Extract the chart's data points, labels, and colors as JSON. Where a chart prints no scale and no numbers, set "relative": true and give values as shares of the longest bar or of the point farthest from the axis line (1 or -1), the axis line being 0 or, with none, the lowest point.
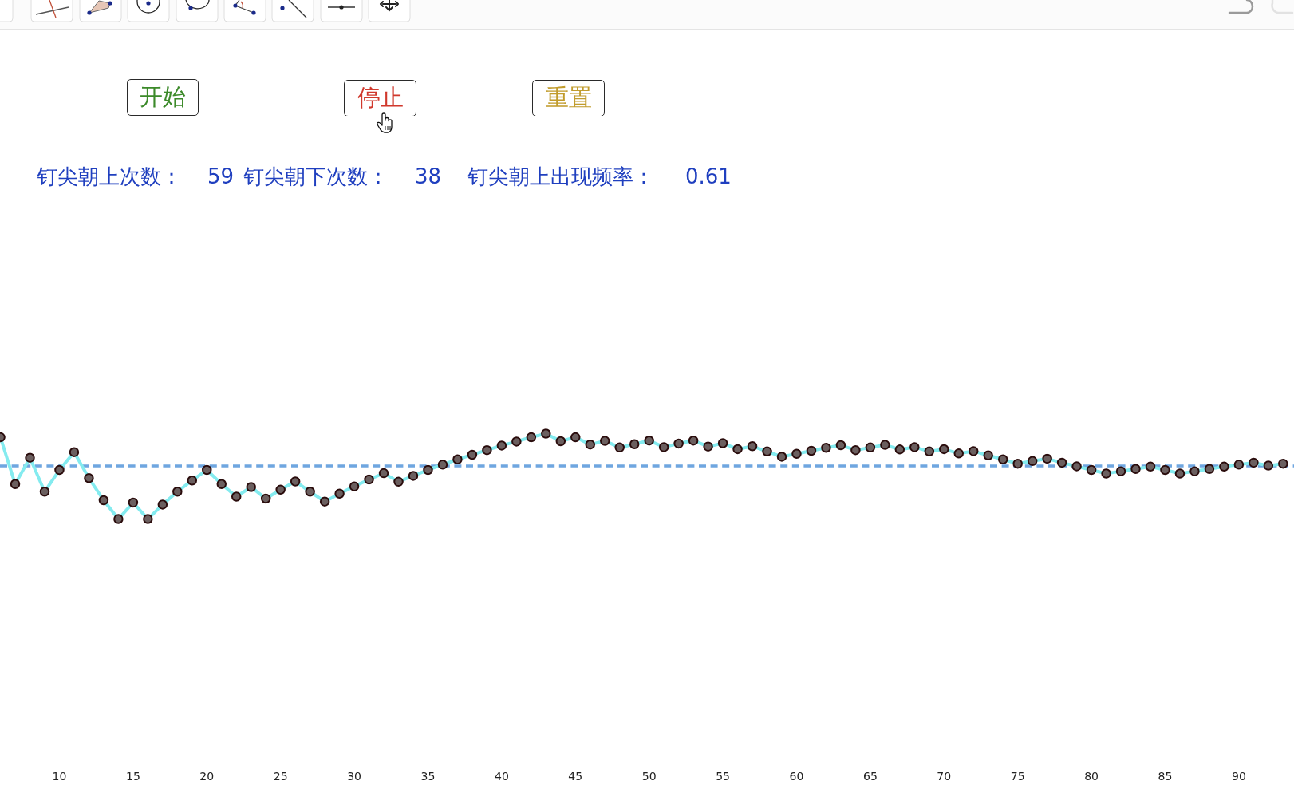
{
  "chart_data": {
    "type": "line",
    "relative": true,
    "annotations": [
      "开始",
      "停止",
      "重置",
      "钉尖朝上次数：",
      "59",
      "钉尖朝下次数：",
      "38",
      "钉尖朝上出现频率：",
      "0.61"
    ],
    "x": [
      6,
      7,
      8,
      9,
      10,
      11,
      12,
      13,
      14,
      15,
      16,
      17,
      18,
      19,
      20,
      21,
      22,
      23,
      24,
      25,
      26,
      27,
      28,
      29,
      30,
      31,
      32,
      33,
      34,
      35,
      36,
      37,
      38,
      39,
      40,
      41,
      42,
      43,
      44,
      45,
      46,
      47,
      48,
      49,
      50,
      51,
      52,
      53,
      54,
      55,
      56,
      57,
      58,
      59,
      60,
      61,
      62,
      63,
      64,
      65,
      66,
      67,
      68,
      69,
      70,
      71,
      72,
      73,
      74,
      75,
      76,
      77,
      78,
      79,
      80,
      81,
      82,
      83,
      84,
      85,
      86,
      87,
      88,
      89,
      90,
      91,
      92,
      93
    ],
    "series": [
      {
        "color": "#84ebef",
        "values": [
          0.989,
          0.847,
          0.927,
          0.824,
          0.89,
          0.944,
          0.865,
          0.798,
          0.741,
          0.791,
          0.741,
          0.785,
          0.824,
          0.858,
          0.89,
          0.847,
          0.809,
          0.838,
          0.803,
          0.83,
          0.855,
          0.824,
          0.794,
          0.818,
          0.84,
          0.861,
          0.88,
          0.854,
          0.872,
          0.89,
          0.906,
          0.922,
          0.936,
          0.95,
          0.964,
          0.976,
          0.989,
          1,
          0.977,
          0.989,
          0.967,
          0.978,
          0.958,
          0.968,
          0.979,
          0.959,
          0.97,
          0.979,
          0.961,
          0.971,
          0.953,
          0.962,
          0.946,
          0.93,
          0.939,
          0.948,
          0.957,
          0.965,
          0.95,
          0.958,
          0.966,
          0.952,
          0.959,
          0.946,
          0.953,
          0.94,
          0.947,
          0.934,
          0.922,
          0.909,
          0.917,
          0.924,
          0.912,
          0.901,
          0.89,
          0.879,
          0.886,
          0.893,
          0.9,
          0.89,
          0.879,
          0.886,
          0.893,
          0.9,
          0.906,
          0.912,
          0.903,
          0.909
        ]
      }
    ],
    "marker": "circle",
    "line_style": "solid",
    "xlim": [
      5.97,
      93.74
    ],
    "xticks": [
      10,
      15,
      20,
      25,
      30,
      35,
      40,
      45,
      50,
      55,
      60,
      65,
      70,
      75,
      80,
      85,
      90
    ],
    "ref_lines": [
      {
        "axis": "y",
        "value": 0.902,
        "color": "#6fa6e0",
        "line_style": "dashed"
      }
    ],
    "tick_labels": "x"
  }
}
